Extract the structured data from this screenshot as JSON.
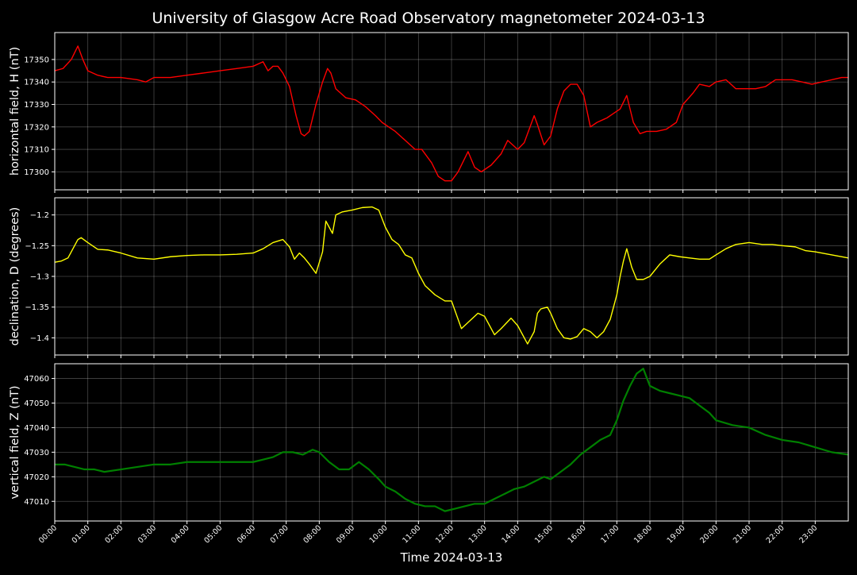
{
  "figure": {
    "title": "University of Glasgow Acre Road Observatory magnetometer 2024-03-13",
    "xlabel": "Time 2024-03-13",
    "x_ticks": [
      "00:00",
      "01:00",
      "02:00",
      "03:00",
      "04:00",
      "05:00",
      "06:00",
      "07:00",
      "08:00",
      "09:00",
      "10:00",
      "11:00",
      "12:00",
      "13:00",
      "14:00",
      "15:00",
      "16:00",
      "17:00",
      "18:00",
      "19:00",
      "20:00",
      "21:00",
      "22:00",
      "23:00"
    ]
  },
  "chart_data": [
    {
      "type": "line",
      "ylabel": "horizontal field, H (nT)",
      "color": "#ff0000",
      "xlim_hours": [
        0,
        24
      ],
      "ylim": [
        17292,
        17362
      ],
      "y_ticks": [
        17300,
        17310,
        17320,
        17330,
        17340,
        17350
      ],
      "grid": true,
      "x_hours": [
        0.0,
        0.25,
        0.5,
        0.7,
        0.85,
        1.0,
        1.3,
        1.6,
        2.0,
        2.5,
        2.75,
        3.0,
        3.5,
        4.0,
        4.5,
        5.0,
        5.5,
        6.0,
        6.3,
        6.45,
        6.6,
        6.75,
        6.9,
        7.1,
        7.3,
        7.45,
        7.55,
        7.7,
        7.9,
        8.1,
        8.25,
        8.35,
        8.5,
        8.8,
        9.1,
        9.4,
        9.7,
        9.9,
        10.1,
        10.3,
        10.6,
        10.9,
        11.1,
        11.4,
        11.6,
        11.8,
        12.0,
        12.2,
        12.5,
        12.7,
        12.9,
        13.2,
        13.5,
        13.7,
        14.0,
        14.2,
        14.5,
        14.6,
        14.8,
        15.0,
        15.2,
        15.4,
        15.6,
        15.8,
        16.0,
        16.2,
        16.4,
        16.7,
        16.9,
        17.1,
        17.3,
        17.5,
        17.7,
        17.9,
        18.2,
        18.5,
        18.8,
        19.0,
        19.3,
        19.5,
        19.8,
        20.0,
        20.3,
        20.6,
        20.9,
        21.2,
        21.5,
        21.8,
        22.0,
        22.3,
        22.6,
        22.9,
        23.2,
        23.5,
        23.8,
        24.0
      ],
      "values": [
        17345,
        17346,
        17350,
        17356,
        17350,
        17345,
        17343,
        17342,
        17342,
        17341,
        17340,
        17342,
        17342,
        17343,
        17344,
        17345,
        17346,
        17347,
        17349,
        17345,
        17347,
        17347,
        17344,
        17338,
        17325,
        17317,
        17316,
        17318,
        17330,
        17340,
        17346,
        17344,
        17337,
        17333,
        17332,
        17329,
        17325,
        17322,
        17320,
        17318,
        17314,
        17310,
        17310,
        17304,
        17298,
        17296,
        17296,
        17300,
        17309,
        17302,
        17300,
        17303,
        17308,
        17314,
        17310,
        17313,
        17325,
        17321,
        17312,
        17316,
        17328,
        17336,
        17339,
        17339,
        17334,
        17320,
        17322,
        17324,
        17326,
        17328,
        17334,
        17322,
        17317,
        17318,
        17318,
        17319,
        17322,
        17330,
        17335,
        17339,
        17338,
        17340,
        17341,
        17337,
        17337,
        17337,
        17338,
        17341,
        17341,
        17341,
        17340,
        17339,
        17340,
        17341,
        17342,
        17342
      ]
    },
    {
      "type": "line",
      "ylabel": "declination, D (degrees)",
      "color": "#ffff00",
      "xlim_hours": [
        0,
        24
      ],
      "ylim": [
        -1.428,
        -1.172
      ],
      "y_ticks": [
        -1.4,
        -1.35,
        -1.3,
        -1.25,
        -1.2
      ],
      "grid": true,
      "x_hours": [
        0.0,
        0.2,
        0.4,
        0.55,
        0.7,
        0.8,
        1.0,
        1.3,
        1.6,
        2.0,
        2.5,
        3.0,
        3.5,
        4.0,
        4.5,
        5.0,
        5.5,
        6.0,
        6.3,
        6.6,
        6.9,
        7.1,
        7.25,
        7.4,
        7.55,
        7.7,
        7.9,
        8.1,
        8.2,
        8.4,
        8.5,
        8.7,
        9.0,
        9.3,
        9.6,
        9.8,
        10.0,
        10.2,
        10.4,
        10.6,
        10.8,
        11.0,
        11.2,
        11.5,
        11.8,
        12.0,
        12.3,
        12.5,
        12.8,
        13.0,
        13.3,
        13.5,
        13.8,
        14.0,
        14.3,
        14.5,
        14.6,
        14.7,
        14.9,
        15.0,
        15.2,
        15.4,
        15.6,
        15.8,
        16.0,
        16.2,
        16.4,
        16.6,
        16.8,
        17.0,
        17.1,
        17.2,
        17.3,
        17.45,
        17.6,
        17.8,
        18.0,
        18.3,
        18.6,
        18.9,
        19.2,
        19.5,
        19.8,
        20.0,
        20.3,
        20.6,
        21.0,
        21.4,
        21.7,
        22.0,
        22.4,
        22.7,
        23.0,
        23.5,
        24.0
      ],
      "values": [
        -1.277,
        -1.275,
        -1.27,
        -1.255,
        -1.24,
        -1.237,
        -1.245,
        -1.256,
        -1.257,
        -1.262,
        -1.27,
        -1.272,
        -1.268,
        -1.266,
        -1.265,
        -1.265,
        -1.264,
        -1.262,
        -1.255,
        -1.245,
        -1.24,
        -1.252,
        -1.272,
        -1.262,
        -1.27,
        -1.28,
        -1.295,
        -1.26,
        -1.21,
        -1.23,
        -1.2,
        -1.195,
        -1.192,
        -1.188,
        -1.187,
        -1.192,
        -1.22,
        -1.24,
        -1.248,
        -1.265,
        -1.27,
        -1.295,
        -1.315,
        -1.33,
        -1.34,
        -1.34,
        -1.385,
        -1.375,
        -1.36,
        -1.365,
        -1.395,
        -1.385,
        -1.368,
        -1.38,
        -1.41,
        -1.39,
        -1.36,
        -1.353,
        -1.35,
        -1.36,
        -1.385,
        -1.4,
        -1.402,
        -1.398,
        -1.385,
        -1.39,
        -1.4,
        -1.39,
        -1.37,
        -1.33,
        -1.3,
        -1.275,
        -1.255,
        -1.285,
        -1.305,
        -1.305,
        -1.3,
        -1.28,
        -1.265,
        -1.268,
        -1.27,
        -1.272,
        -1.272,
        -1.265,
        -1.255,
        -1.248,
        -1.245,
        -1.248,
        -1.248,
        -1.25,
        -1.252,
        -1.258,
        -1.26,
        -1.265,
        -1.27
      ]
    },
    {
      "type": "line",
      "ylabel": "vertical field, Z (nT)",
      "color": "#008000",
      "xlim_hours": [
        0,
        24
      ],
      "ylim": [
        47002,
        47066
      ],
      "y_ticks": [
        47010,
        47020,
        47030,
        47040,
        47050,
        47060
      ],
      "grid": true,
      "x_hours": [
        0.0,
        0.3,
        0.6,
        0.9,
        1.2,
        1.5,
        2.0,
        2.5,
        3.0,
        3.5,
        4.0,
        4.5,
        5.0,
        5.5,
        6.0,
        6.3,
        6.6,
        6.9,
        7.2,
        7.5,
        7.8,
        8.0,
        8.3,
        8.6,
        8.9,
        9.2,
        9.5,
        9.8,
        10.0,
        10.3,
        10.6,
        10.9,
        11.2,
        11.5,
        11.8,
        12.1,
        12.4,
        12.7,
        13.0,
        13.3,
        13.6,
        13.9,
        14.2,
        14.5,
        14.8,
        15.0,
        15.3,
        15.6,
        15.9,
        16.2,
        16.5,
        16.8,
        17.0,
        17.2,
        17.4,
        17.6,
        17.8,
        18.0,
        18.3,
        18.6,
        18.9,
        19.2,
        19.5,
        19.8,
        20.0,
        20.5,
        21.0,
        21.5,
        22.0,
        22.5,
        23.0,
        23.5,
        24.0
      ],
      "values": [
        47025,
        47025,
        47024,
        47023,
        47023,
        47022,
        47023,
        47024,
        47025,
        47025,
        47026,
        47026,
        47026,
        47026,
        47026,
        47027,
        47028,
        47030,
        47030,
        47029,
        47031,
        47030,
        47026,
        47023,
        47023,
        47026,
        47023,
        47019,
        47016,
        47014,
        47011,
        47009,
        47008,
        47008,
        47006,
        47007,
        47008,
        47009,
        47009,
        47011,
        47013,
        47015,
        47016,
        47018,
        47020,
        47019,
        47022,
        47025,
        47029,
        47032,
        47035,
        47037,
        47043,
        47051,
        47057,
        47062,
        47064,
        47057,
        47055,
        47054,
        47053,
        47052,
        47049,
        47046,
        47043,
        47041,
        47040,
        47037,
        47035,
        47034,
        47032,
        47030,
        47029
      ]
    }
  ]
}
